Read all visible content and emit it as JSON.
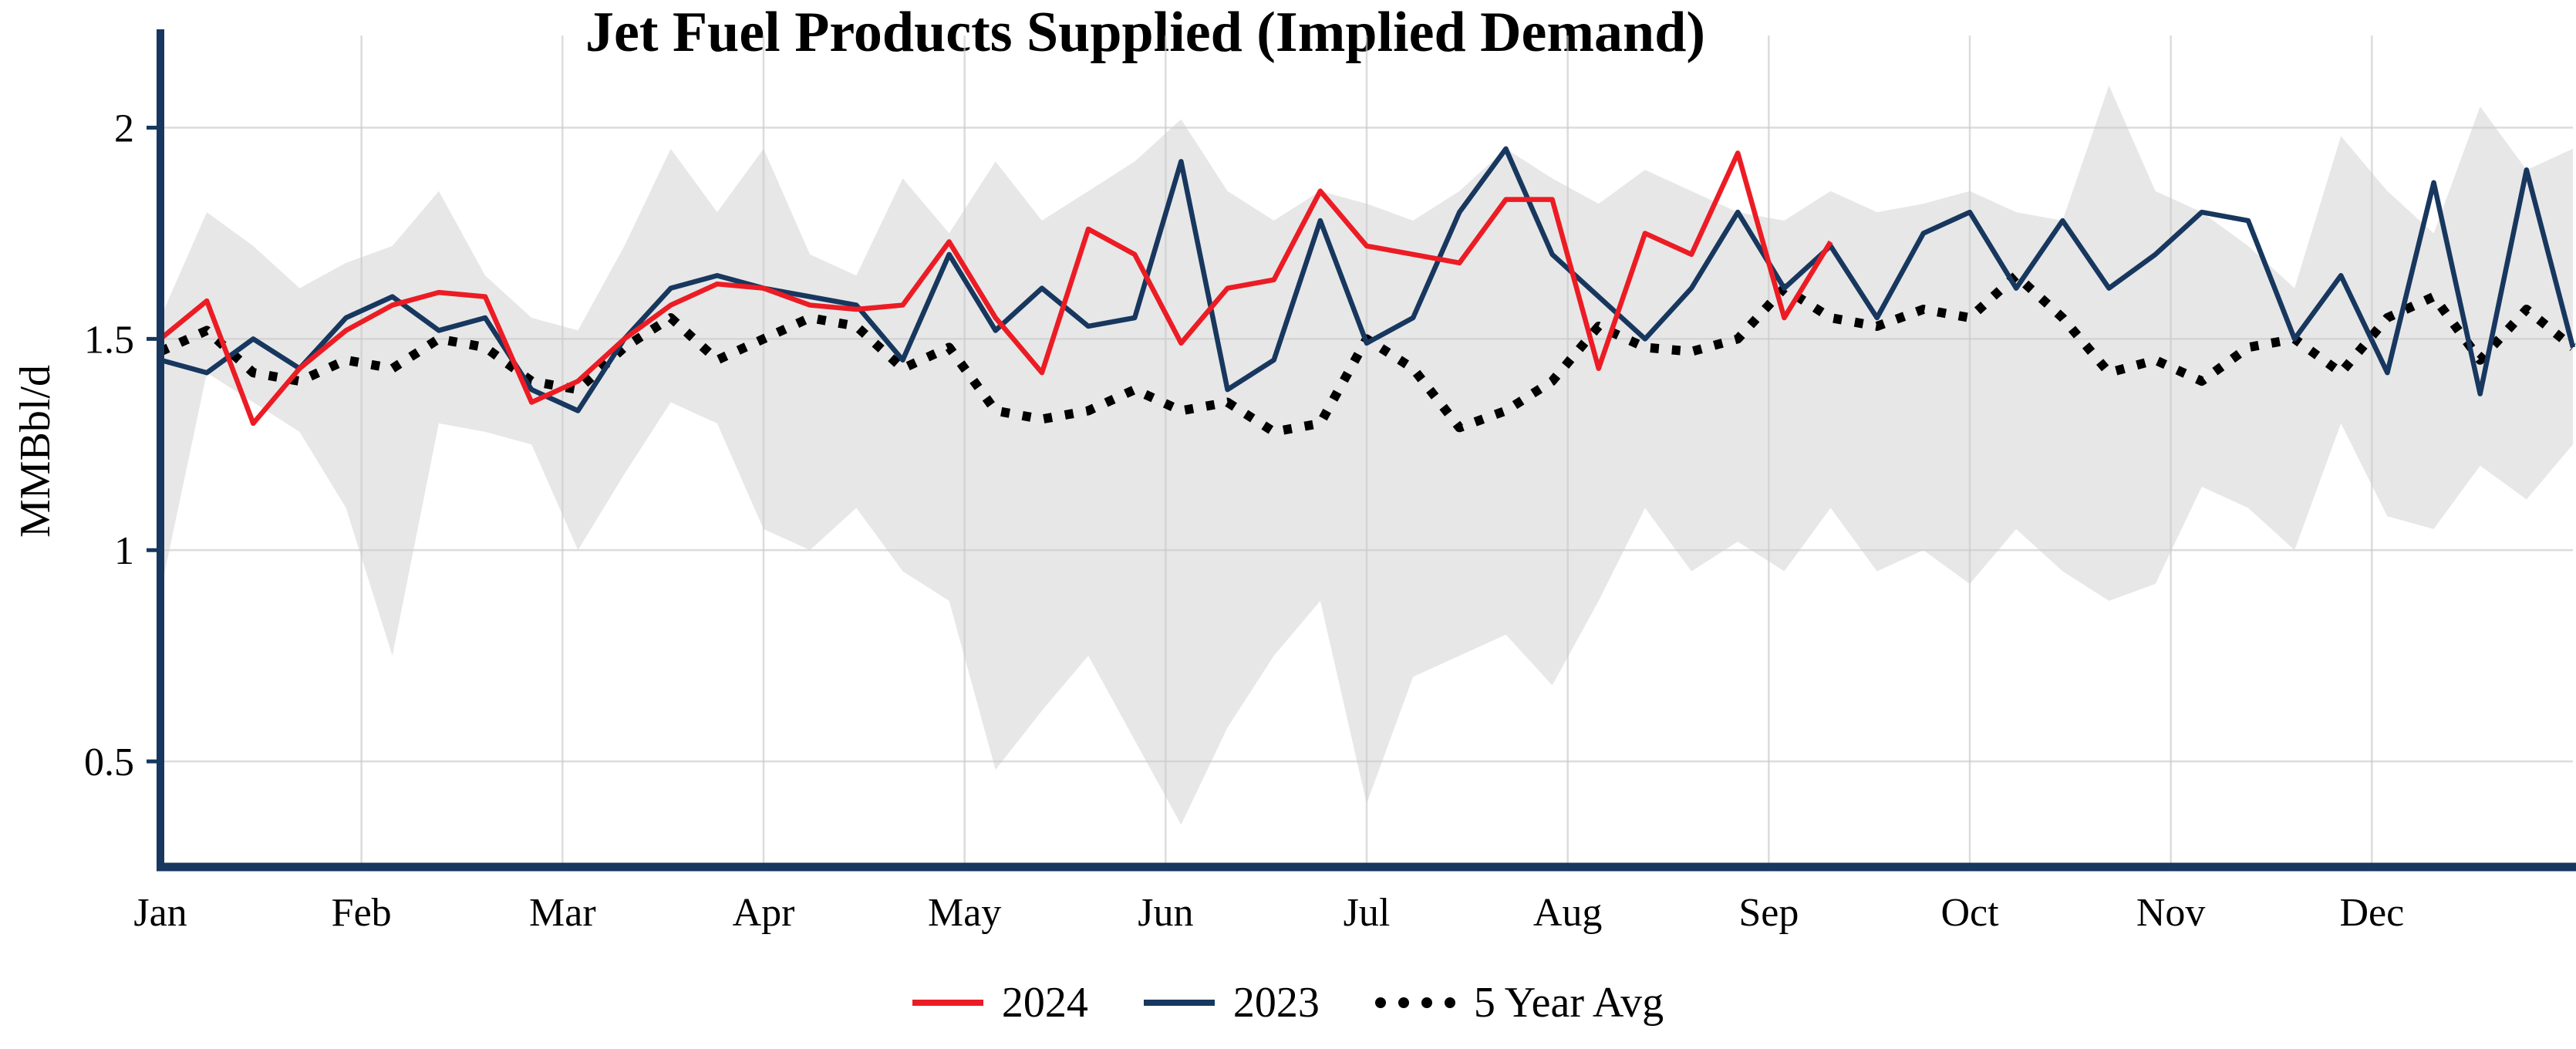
{
  "page": {
    "background": "#ffffff"
  },
  "chart_data": {
    "type": "line",
    "title": "Jet Fuel Products Supplied (Implied Demand)",
    "ylabel": "MMBbl/d",
    "axis_color": "#17375e",
    "grid_color": "#c9c9c9",
    "x_axis": {
      "unit": "weekly",
      "weeks": 53,
      "months": [
        "Jan",
        "Feb",
        "Mar",
        "Apr",
        "May",
        "Jun",
        "Jul",
        "Aug",
        "Sep",
        "Oct",
        "Nov",
        "Dec"
      ]
    },
    "y_axis": {
      "ticks": [
        "0.5",
        "1",
        "1.5",
        "2"
      ],
      "tick_values": [
        0.5,
        1.0,
        1.5,
        2.0
      ],
      "range": [
        0.25,
        2.2
      ],
      "grid": true
    },
    "band": {
      "name": "5-year range",
      "fill": "#e7e7e7",
      "min": [
        0.9,
        1.42,
        1.35,
        1.28,
        1.1,
        0.75,
        1.3,
        1.28,
        1.25,
        1.0,
        1.18,
        1.35,
        1.3,
        1.05,
        1.0,
        1.1,
        0.95,
        0.88,
        0.48,
        0.62,
        0.75,
        0.55,
        0.35,
        0.58,
        0.75,
        0.88,
        0.4,
        0.7,
        0.75,
        0.8,
        0.68,
        0.88,
        1.1,
        0.95,
        1.02,
        0.95,
        1.1,
        0.95,
        1.0,
        0.92,
        1.05,
        0.95,
        0.88,
        0.92,
        1.15,
        1.1,
        1.0,
        1.3,
        1.08,
        1.05,
        1.2,
        1.12,
        1.25
      ],
      "max": [
        1.55,
        1.8,
        1.72,
        1.62,
        1.68,
        1.72,
        1.85,
        1.65,
        1.55,
        1.52,
        1.72,
        1.95,
        1.8,
        1.95,
        1.7,
        1.65,
        1.88,
        1.75,
        1.92,
        1.78,
        1.85,
        1.92,
        2.02,
        1.85,
        1.78,
        1.85,
        1.82,
        1.78,
        1.85,
        1.95,
        1.88,
        1.82,
        1.9,
        1.85,
        1.8,
        1.78,
        1.85,
        1.8,
        1.82,
        1.85,
        1.8,
        1.78,
        2.1,
        1.85,
        1.8,
        1.72,
        1.62,
        1.98,
        1.85,
        1.75,
        2.05,
        1.9,
        1.95
      ]
    },
    "series": [
      {
        "name": "2024",
        "color": "#ec1c24",
        "style": "solid",
        "values": [
          1.5,
          1.59,
          1.3,
          1.43,
          1.52,
          1.58,
          1.61,
          1.6,
          1.35,
          1.4,
          1.5,
          1.58,
          1.63,
          1.62,
          1.58,
          1.57,
          1.58,
          1.73,
          1.55,
          1.42,
          1.76,
          1.7,
          1.49,
          1.62,
          1.64,
          1.85,
          1.72,
          1.7,
          1.68,
          1.83,
          1.83,
          1.43,
          1.75,
          1.7,
          1.94,
          1.55,
          1.73
        ]
      },
      {
        "name": "2023",
        "color": "#17375e",
        "style": "solid",
        "values": [
          1.45,
          1.42,
          1.5,
          1.43,
          1.55,
          1.6,
          1.52,
          1.55,
          1.38,
          1.33,
          1.5,
          1.62,
          1.65,
          1.62,
          1.6,
          1.58,
          1.45,
          1.7,
          1.52,
          1.62,
          1.53,
          1.55,
          1.92,
          1.38,
          1.45,
          1.78,
          1.49,
          1.55,
          1.8,
          1.95,
          1.7,
          1.6,
          1.5,
          1.62,
          1.8,
          1.62,
          1.72,
          1.55,
          1.75,
          1.8,
          1.62,
          1.78,
          1.62,
          1.7,
          1.8,
          1.78,
          1.5,
          1.65,
          1.42,
          1.87,
          1.37,
          1.9,
          1.48
        ]
      },
      {
        "name": "5 Year Avg",
        "color": "#000000",
        "style": "dotted",
        "values": [
          1.47,
          1.52,
          1.42,
          1.4,
          1.45,
          1.43,
          1.5,
          1.48,
          1.4,
          1.38,
          1.48,
          1.55,
          1.45,
          1.5,
          1.55,
          1.53,
          1.43,
          1.48,
          1.33,
          1.31,
          1.33,
          1.38,
          1.33,
          1.35,
          1.28,
          1.3,
          1.5,
          1.43,
          1.29,
          1.33,
          1.4,
          1.53,
          1.48,
          1.47,
          1.5,
          1.62,
          1.55,
          1.53,
          1.57,
          1.55,
          1.65,
          1.55,
          1.42,
          1.45,
          1.4,
          1.48,
          1.5,
          1.42,
          1.55,
          1.6,
          1.45,
          1.57,
          1.48
        ]
      }
    ],
    "legend": {
      "position": "bottom",
      "items": [
        "2024",
        "2023",
        "5 Year Avg"
      ]
    }
  }
}
